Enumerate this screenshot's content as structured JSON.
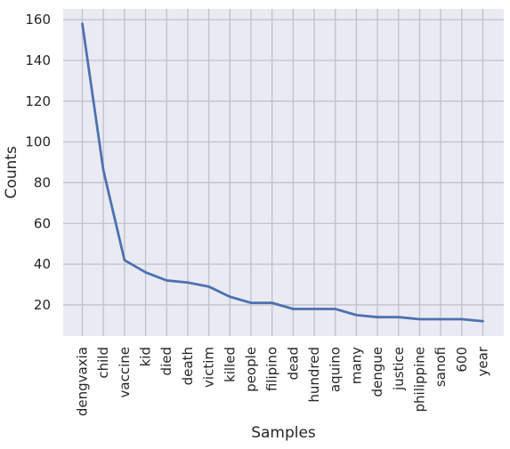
{
  "chart_data": {
    "type": "line",
    "title": "",
    "xlabel": "Samples",
    "ylabel": "Counts",
    "categories": [
      "dengvaxia",
      "child",
      "vaccine",
      "kid",
      "died",
      "death",
      "victim",
      "killed",
      "people",
      "filipino",
      "dead",
      "hundred",
      "aquino",
      "many",
      "dengue",
      "justice",
      "philippine",
      "sanofi",
      "600",
      "year"
    ],
    "series": [
      {
        "values": [
          158,
          86,
          42,
          36,
          32,
          31,
          29,
          24,
          21,
          21,
          18,
          18,
          18,
          15,
          14,
          14,
          13,
          13,
          13,
          12
        ]
      }
    ],
    "yticks": [
      20,
      40,
      60,
      80,
      100,
      120,
      140,
      160
    ],
    "ylim": [
      4.7,
      165.3
    ],
    "grid": true,
    "colors": {
      "background": "#eaeaf2",
      "grid": "#c0c0c8",
      "line": "#4c72b0"
    }
  }
}
